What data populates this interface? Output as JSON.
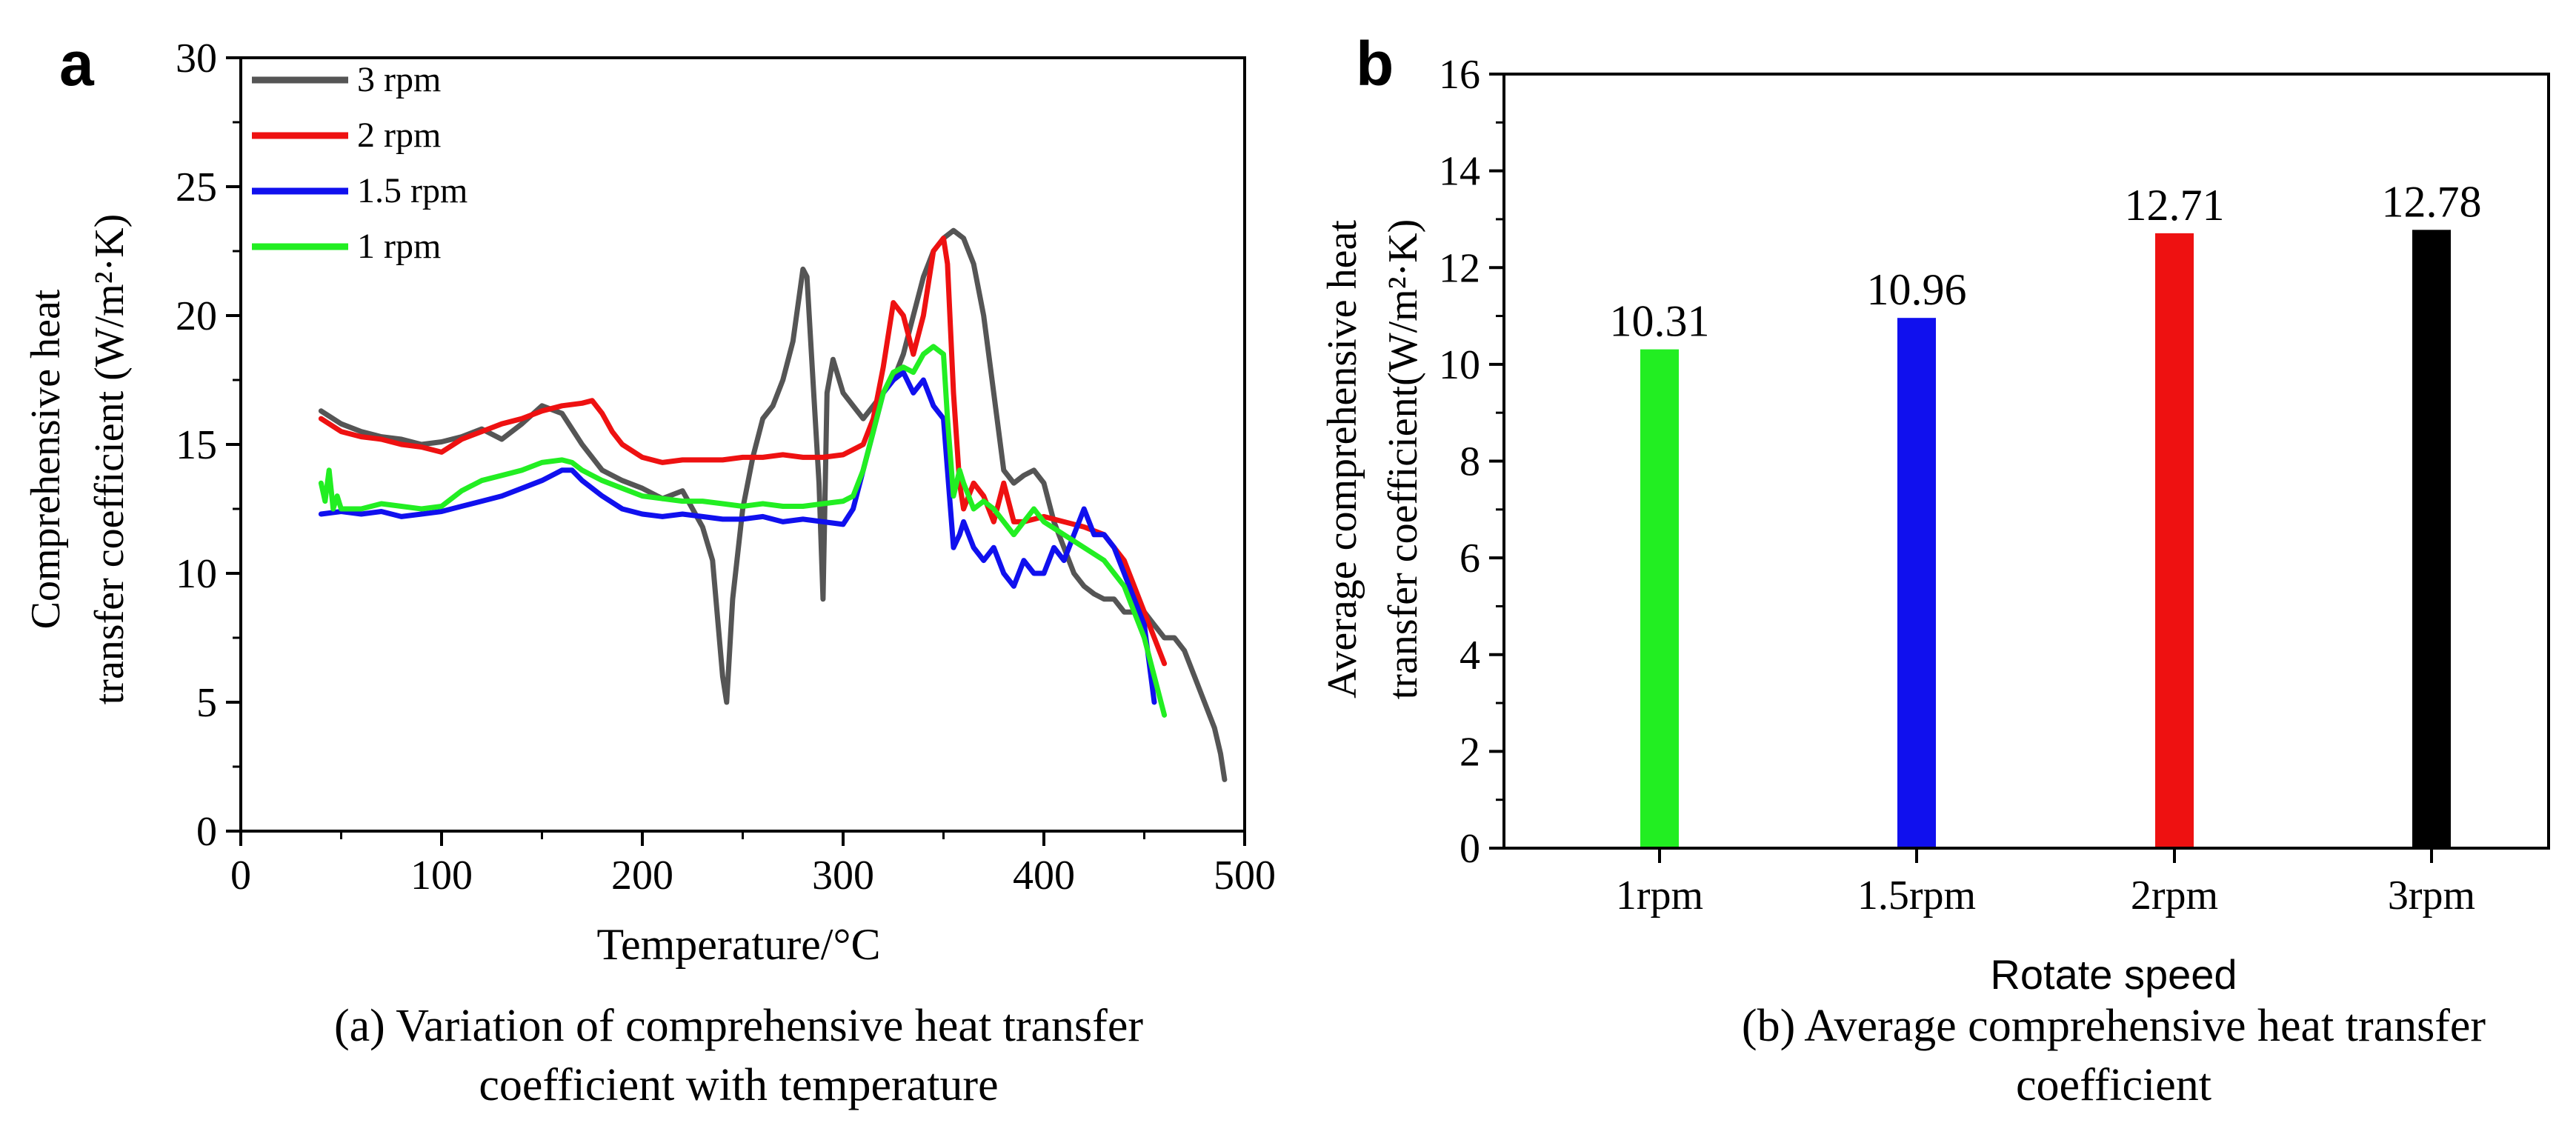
{
  "panel_a": {
    "panel_label": "a",
    "caption_line1": "(a) Variation of comprehensive heat transfer",
    "caption_line2": "coefficient with temperature"
  },
  "panel_b": {
    "panel_label": "b",
    "caption_line1": "(b) Average comprehensive heat transfer",
    "caption_line2": "coefficient"
  },
  "chart_data": [
    {
      "type": "line",
      "title": "",
      "xlabel": "Temperature/°C",
      "ylabel_line1": "Comprehensive heat",
      "ylabel_line2": "transfer coefficient (W/m²·K)",
      "xlim": [
        0,
        500
      ],
      "ylim": [
        0,
        30
      ],
      "xticks": [
        0,
        100,
        200,
        300,
        400,
        500
      ],
      "yticks": [
        0,
        5,
        10,
        15,
        20,
        25,
        30
      ],
      "legend_position": "top-left",
      "series": [
        {
          "name": "3 rpm",
          "color": "#555555",
          "x": [
            40,
            50,
            60,
            70,
            80,
            90,
            100,
            110,
            120,
            130,
            140,
            150,
            160,
            170,
            180,
            190,
            200,
            210,
            220,
            225,
            230,
            235,
            240,
            242,
            245,
            250,
            255,
            260,
            265,
            270,
            275,
            280,
            282,
            285,
            288,
            290,
            292,
            295,
            300,
            305,
            310,
            315,
            320,
            325,
            330,
            335,
            340,
            345,
            350,
            355,
            360,
            365,
            370,
            375,
            380,
            385,
            390,
            395,
            400,
            405,
            410,
            415,
            420,
            425,
            430,
            435,
            440,
            445,
            450,
            455,
            460,
            465,
            470,
            475,
            480,
            485,
            488,
            490
          ],
          "y": [
            16.3,
            15.8,
            15.5,
            15.3,
            15.2,
            15.0,
            15.1,
            15.3,
            15.6,
            15.2,
            15.8,
            16.5,
            16.2,
            15.0,
            14.0,
            13.6,
            13.3,
            12.9,
            13.2,
            12.5,
            11.8,
            10.5,
            6.0,
            5.0,
            9.0,
            12.5,
            14.5,
            16.0,
            16.5,
            17.5,
            19.0,
            21.8,
            21.5,
            17.5,
            13.5,
            9.0,
            17.0,
            18.3,
            17.0,
            16.5,
            16.0,
            16.5,
            17.0,
            17.5,
            18.5,
            20.0,
            21.5,
            22.5,
            23.0,
            23.3,
            23.0,
            22.0,
            20.0,
            17.0,
            14.0,
            13.5,
            13.8,
            14.0,
            13.5,
            12.0,
            11.0,
            10.0,
            9.5,
            9.2,
            9.0,
            9.0,
            8.5,
            8.5,
            8.5,
            8.0,
            7.5,
            7.5,
            7.0,
            6.0,
            5.0,
            4.0,
            3.0,
            2.0
          ]
        },
        {
          "name": "2 rpm",
          "color": "#ee1111",
          "x": [
            40,
            50,
            60,
            70,
            80,
            90,
            100,
            110,
            120,
            130,
            140,
            150,
            160,
            170,
            175,
            180,
            185,
            190,
            200,
            210,
            220,
            230,
            240,
            250,
            260,
            270,
            280,
            290,
            300,
            305,
            310,
            315,
            320,
            325,
            330,
            335,
            340,
            345,
            350,
            352,
            355,
            358,
            360,
            365,
            370,
            375,
            380,
            385,
            390,
            400,
            410,
            420,
            430,
            440,
            450,
            460
          ],
          "y": [
            16.0,
            15.5,
            15.3,
            15.2,
            15.0,
            14.9,
            14.7,
            15.2,
            15.5,
            15.8,
            16.0,
            16.3,
            16.5,
            16.6,
            16.7,
            16.2,
            15.5,
            15.0,
            14.5,
            14.3,
            14.4,
            14.4,
            14.4,
            14.5,
            14.5,
            14.6,
            14.5,
            14.5,
            14.6,
            14.8,
            15.0,
            16.0,
            18.0,
            20.5,
            20.0,
            18.5,
            20.0,
            22.5,
            23.0,
            22.0,
            17.0,
            13.5,
            12.5,
            13.5,
            13.0,
            12.0,
            13.5,
            12.0,
            12.0,
            12.2,
            12.0,
            11.8,
            11.5,
            10.5,
            8.5,
            6.5
          ]
        },
        {
          "name": "1.5 rpm",
          "color": "#1010ee",
          "x": [
            40,
            50,
            60,
            70,
            80,
            90,
            100,
            110,
            120,
            130,
            140,
            150,
            160,
            165,
            170,
            180,
            190,
            200,
            210,
            220,
            230,
            240,
            250,
            260,
            270,
            280,
            290,
            300,
            305,
            310,
            315,
            320,
            325,
            330,
            335,
            340,
            345,
            350,
            352,
            355,
            358,
            360,
            365,
            370,
            375,
            380,
            385,
            390,
            395,
            400,
            405,
            410,
            415,
            420,
            425,
            430,
            435,
            440,
            445,
            450,
            455
          ],
          "y": [
            12.3,
            12.4,
            12.3,
            12.4,
            12.2,
            12.3,
            12.4,
            12.6,
            12.8,
            13.0,
            13.3,
            13.6,
            14.0,
            14.0,
            13.6,
            13.0,
            12.5,
            12.3,
            12.2,
            12.3,
            12.2,
            12.1,
            12.1,
            12.2,
            12.0,
            12.1,
            12.0,
            11.9,
            12.5,
            14.0,
            15.5,
            17.0,
            17.5,
            17.8,
            17.0,
            17.5,
            16.5,
            16.0,
            14.0,
            11.0,
            11.5,
            12.0,
            11.0,
            10.5,
            11.0,
            10.0,
            9.5,
            10.5,
            10.0,
            10.0,
            11.0,
            10.5,
            11.5,
            12.5,
            11.5,
            11.5,
            11.0,
            10.0,
            9.0,
            8.0,
            5.0
          ]
        },
        {
          "name": "1 rpm",
          "color": "#22ee22",
          "x": [
            40,
            42,
            44,
            46,
            48,
            50,
            60,
            70,
            80,
            90,
            100,
            110,
            120,
            130,
            140,
            150,
            160,
            165,
            170,
            180,
            190,
            200,
            210,
            220,
            230,
            240,
            250,
            260,
            270,
            280,
            290,
            300,
            305,
            310,
            315,
            320,
            325,
            330,
            335,
            340,
            345,
            350,
            352,
            355,
            358,
            360,
            365,
            370,
            375,
            380,
            385,
            390,
            395,
            400,
            410,
            420,
            430,
            440,
            450,
            460
          ],
          "y": [
            13.5,
            12.8,
            14.0,
            12.5,
            13.0,
            12.5,
            12.5,
            12.7,
            12.6,
            12.5,
            12.6,
            13.2,
            13.6,
            13.8,
            14.0,
            14.3,
            14.4,
            14.3,
            14.0,
            13.6,
            13.3,
            13.0,
            12.9,
            12.8,
            12.8,
            12.7,
            12.6,
            12.7,
            12.6,
            12.6,
            12.7,
            12.8,
            13.0,
            14.0,
            15.5,
            17.0,
            17.8,
            18.0,
            17.8,
            18.5,
            18.8,
            18.5,
            16.0,
            13.0,
            14.0,
            13.5,
            12.5,
            12.8,
            12.5,
            12.0,
            11.5,
            12.0,
            12.5,
            12.0,
            11.5,
            11.0,
            10.5,
            9.5,
            7.5,
            4.5
          ]
        }
      ]
    },
    {
      "type": "bar",
      "title": "",
      "xlabel": "Rotate speed",
      "ylabel_line1": "Average comprehensive heat",
      "ylabel_line2": "transfer coefficient(W/m²·K)",
      "ylim": [
        0,
        16
      ],
      "yticks": [
        0,
        2,
        4,
        6,
        8,
        10,
        12,
        14,
        16
      ],
      "categories": [
        "1rpm",
        "1.5rpm",
        "2rpm",
        "3rpm"
      ],
      "values": [
        10.31,
        10.96,
        12.71,
        12.78
      ],
      "value_labels": [
        "10.31",
        "10.96",
        "12.71",
        "12.78"
      ],
      "colors": [
        "#22ee22",
        "#1010ee",
        "#ee1111",
        "#000000"
      ]
    }
  ]
}
